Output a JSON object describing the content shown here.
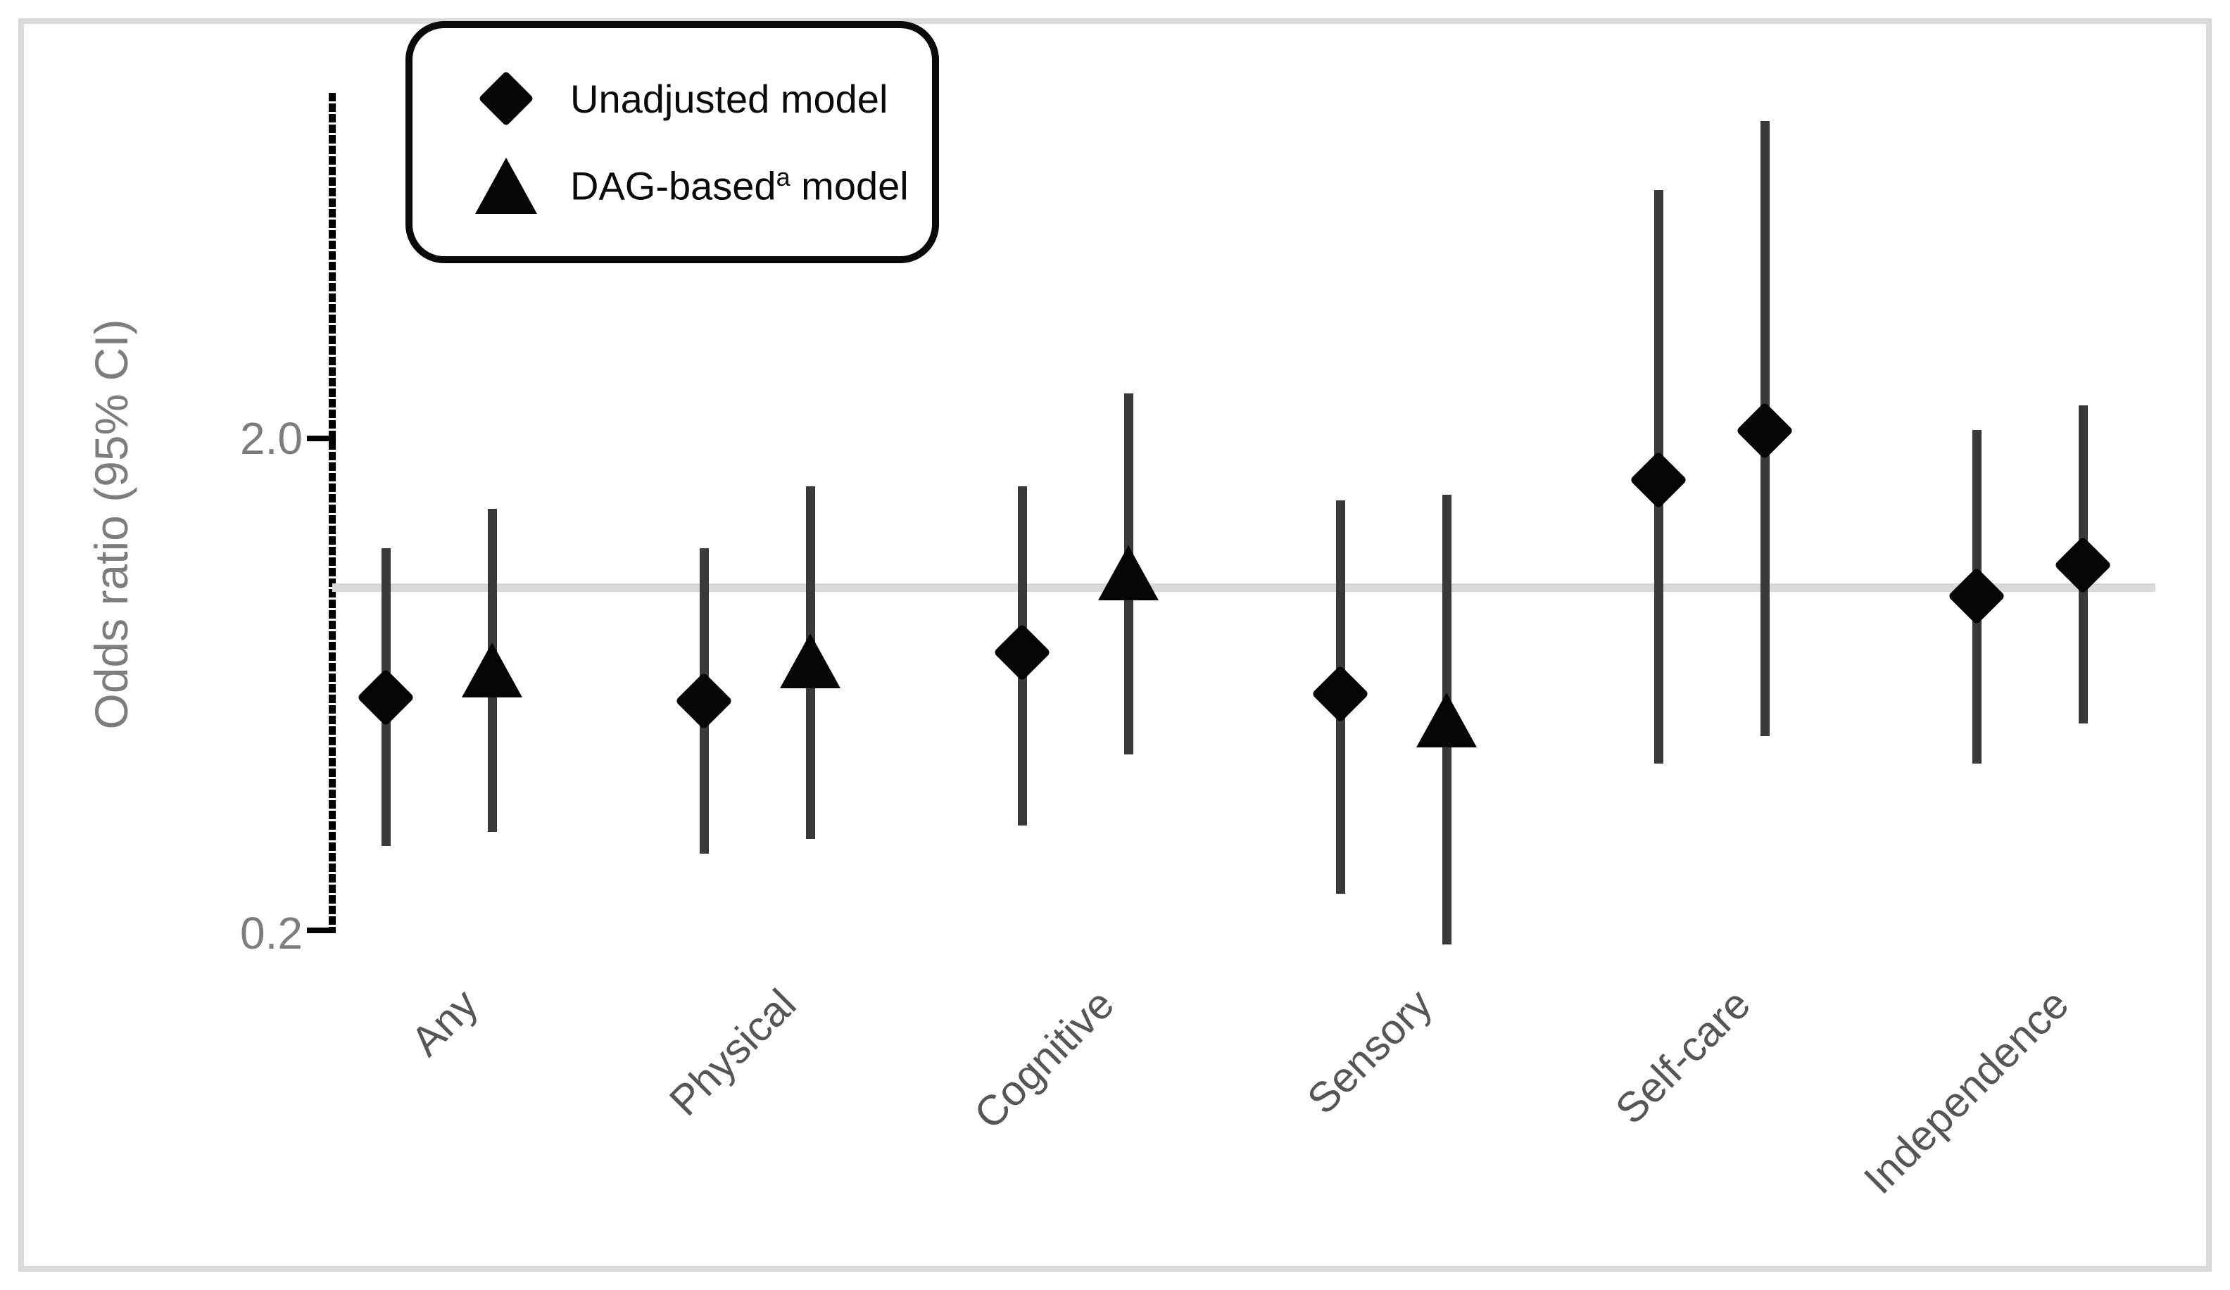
{
  "chart_data": {
    "type": "scatter",
    "subtype": "forest-plot",
    "title": "",
    "ylabel": "Odds ratio (95% CI)",
    "yscale": "log",
    "ylim": [
      0.2,
      10
    ],
    "yticks": [
      {
        "value": 2.0,
        "label": "2.0"
      },
      {
        "value": 0.2,
        "label": "0.2"
      }
    ],
    "reference_line": 1.0,
    "grid": false,
    "legend_position": "top-left",
    "categories": [
      "Any",
      "Physical",
      "Cognitive",
      "Sensory",
      "Self-care",
      "Independence"
    ],
    "series": [
      {
        "name": "Unadjusted model",
        "marker": "diamond",
        "points": [
          {
            "category": "Any",
            "or": 0.6,
            "ci_low": 0.3,
            "ci_high": 1.2,
            "marker": "diamond"
          },
          {
            "category": "Physical",
            "or": 0.59,
            "ci_low": 0.29,
            "ci_high": 1.2,
            "marker": "diamond"
          },
          {
            "category": "Cognitive",
            "or": 0.74,
            "ci_low": 0.33,
            "ci_high": 1.6,
            "marker": "diamond"
          },
          {
            "category": "Sensory",
            "or": 0.61,
            "ci_low": 0.24,
            "ci_high": 1.5,
            "marker": "diamond"
          },
          {
            "category": "Self-care",
            "or": 1.65,
            "ci_low": 0.44,
            "ci_high": 6.35,
            "marker": "diamond"
          },
          {
            "category": "Independence",
            "or": 0.96,
            "ci_low": 0.44,
            "ci_high": 2.08,
            "marker": "diamond"
          }
        ]
      },
      {
        "name": "DAG-based model",
        "marker": "triangle",
        "points": [
          {
            "category": "Any",
            "or": 0.68,
            "ci_low": 0.32,
            "ci_high": 1.44,
            "marker": "triangle"
          },
          {
            "category": "Physical",
            "or": 0.71,
            "ci_low": 0.31,
            "ci_high": 1.6,
            "marker": "triangle"
          },
          {
            "category": "Cognitive",
            "or": 1.07,
            "ci_low": 0.46,
            "ci_high": 2.47,
            "marker": "triangle"
          },
          {
            "category": "Sensory",
            "or": 0.54,
            "ci_low": 0.19,
            "ci_high": 1.54,
            "marker": "triangle"
          },
          {
            "category": "Self-care",
            "or": 2.07,
            "ci_low": 0.5,
            "ci_high": 8.77,
            "marker": "diamond"
          },
          {
            "category": "Independence",
            "or": 1.11,
            "ci_low": 0.53,
            "ci_high": 2.33,
            "marker": "diamond"
          }
        ]
      }
    ],
    "colors": {
      "marker": "#050505",
      "ci_bar": "#3a3a3a",
      "reference_line": "#d9d9d9",
      "axis_text": "#7d7d7d",
      "category_text": "#565656",
      "figure_border": "#d9d9d9"
    }
  },
  "legend": {
    "items": [
      {
        "label": "Unadjusted model"
      },
      {
        "label_prefix": "DAG-based",
        "superscript": "a",
        "label_suffix": " model"
      }
    ]
  }
}
